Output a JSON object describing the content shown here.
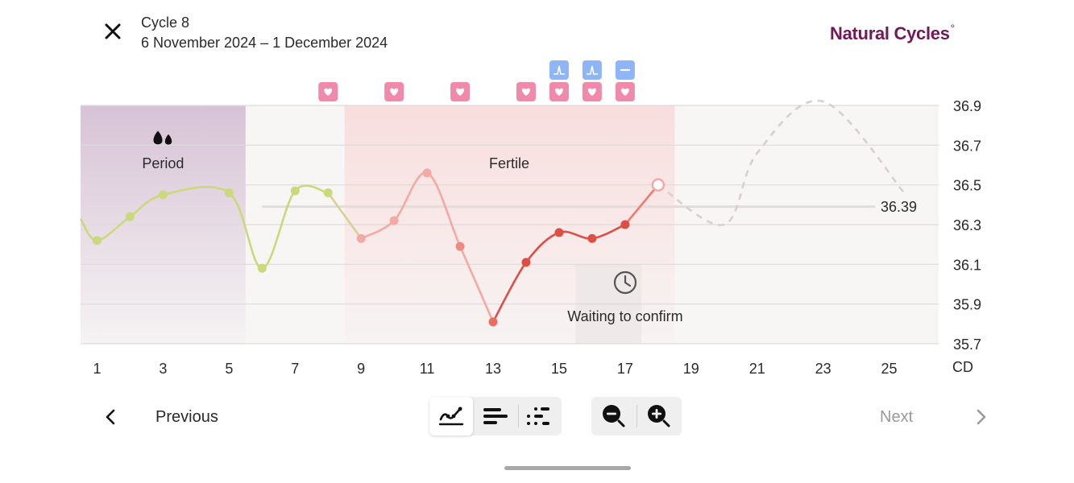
{
  "header": {
    "title": "Cycle 8",
    "subtitle": "6 November 2024 – 1 December 2024",
    "brand": "Natural Cycles",
    "brand_mark": "°"
  },
  "chart_data": {
    "type": "line",
    "xlabel": "CD",
    "ylabel": "",
    "x_ticks": [
      1,
      3,
      5,
      7,
      9,
      11,
      13,
      15,
      17,
      19,
      21,
      23,
      25
    ],
    "y_ticks": [
      "36.9",
      "36.7",
      "36.5",
      "36.3",
      "36.1",
      "35.9",
      "35.7"
    ],
    "ylim": [
      35.7,
      36.9
    ],
    "xlim": [
      0.5,
      26.5
    ],
    "coverline": 36.39,
    "coverline_label": "36.39",
    "period_label": "Period",
    "fertile_label": "Fertile",
    "waiting_label": "Waiting to confirm",
    "phases": {
      "period_days": [
        1,
        5
      ],
      "fertile_days": [
        9,
        18
      ],
      "waiting_days": [
        15.5,
        17.5
      ]
    },
    "series": [
      {
        "segment": "period",
        "color": "#c9d97c",
        "points": [
          [
            1,
            36.22
          ],
          [
            2,
            36.34
          ],
          [
            3,
            36.45
          ],
          [
            5,
            36.46
          ],
          [
            6,
            36.08
          ],
          [
            7,
            36.47
          ],
          [
            8,
            36.46
          ]
        ]
      },
      {
        "segment": "pre-ovulation",
        "color": "#f4aaa4",
        "points": [
          [
            9,
            36.23
          ],
          [
            10,
            36.32
          ],
          [
            11,
            36.56
          ],
          [
            12,
            36.19
          ],
          [
            13,
            35.81
          ]
        ]
      },
      {
        "segment": "fertile-measured",
        "color": "#dd4f45",
        "points": [
          [
            14,
            36.11
          ],
          [
            15,
            36.26
          ],
          [
            16,
            36.23
          ],
          [
            17,
            36.3
          ]
        ]
      },
      {
        "segment": "today",
        "color": "#f07a6e",
        "points": [
          [
            18,
            36.5
          ]
        ]
      },
      {
        "segment": "prediction",
        "color": "#d6d0d0",
        "points": [
          [
            18,
            36.5
          ],
          [
            20,
            36.3
          ],
          [
            21,
            36.66
          ],
          [
            23,
            36.92
          ],
          [
            25.5,
            36.45
          ]
        ]
      }
    ],
    "markers": {
      "heart_days": [
        8,
        10,
        12,
        14,
        15,
        16,
        17
      ],
      "lh_test_days": [
        15,
        16
      ],
      "lh_negative_days": [
        17
      ],
      "colors": {
        "heart": "#f18aaa",
        "test": "#8eb5f5"
      }
    },
    "colors": {
      "period_band": "#d7c3d6",
      "fertile_band": "#f8dede",
      "background": "#f7f6f5",
      "grid": "#dedbda"
    }
  },
  "nav": {
    "previous_label": "Previous",
    "next_label": "Next"
  },
  "view_modes": [
    {
      "name": "graph-view",
      "icon": "line-graph-icon",
      "active": true
    },
    {
      "name": "bar-view",
      "icon": "bars-icon",
      "active": false
    },
    {
      "name": "dots-view",
      "icon": "dots-icon",
      "active": false
    }
  ],
  "zoom": {
    "out_icon": "zoom-out-icon",
    "in_icon": "zoom-in-icon"
  }
}
